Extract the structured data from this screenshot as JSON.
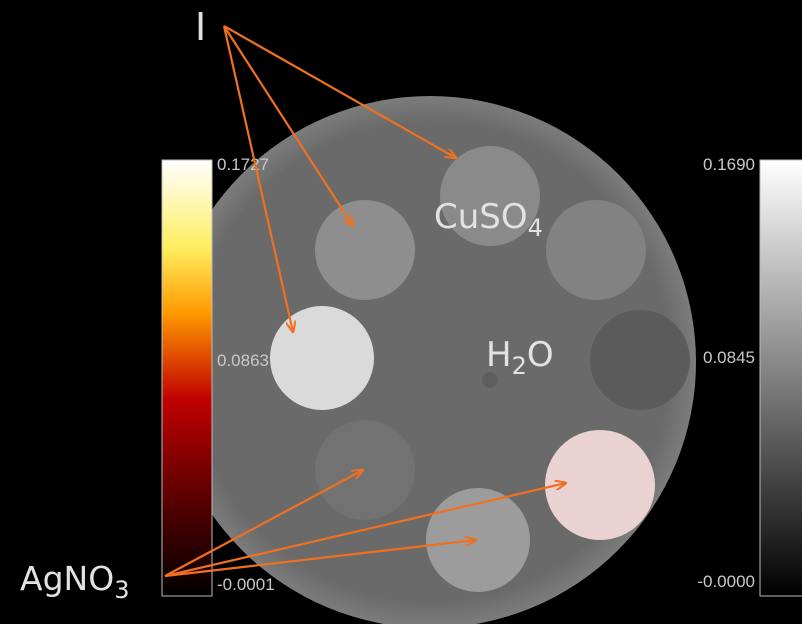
{
  "labels": {
    "iodine": "I",
    "silver_nitrate": {
      "base": "AgNO",
      "sub": "3"
    },
    "copper_sulfate": {
      "base": "CuSO",
      "sub": "4"
    },
    "water": {
      "pre": "H",
      "sub": "2",
      "post": "O"
    }
  },
  "colorbars": [
    {
      "ticks": [
        "0.1727",
        "0.0863",
        "-0.0001"
      ]
    },
    {
      "ticks": [
        "0.1690",
        "0.0845",
        "-0.0000"
      ]
    }
  ]
}
